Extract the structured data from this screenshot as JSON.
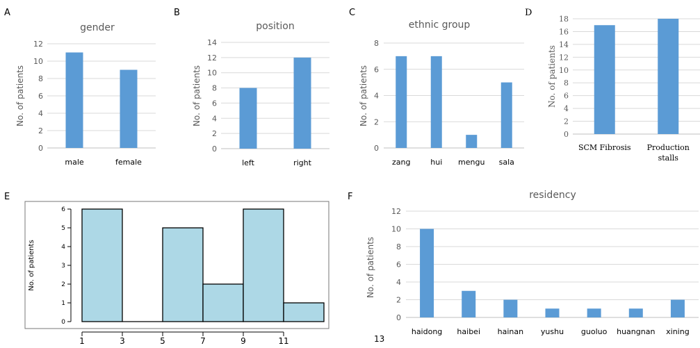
{
  "footnote": "13",
  "colors": {
    "bar": "#5b9bd5",
    "hist_fill": "#add8e6",
    "hist_stroke": "#000000",
    "grid": "#d9d9d9",
    "text": "#595959"
  },
  "chart_data": [
    {
      "id": "A",
      "panel_label": "A",
      "type": "bar",
      "title": "gender",
      "ylabel": "No. of patients",
      "xlabel": "",
      "categories": [
        "male",
        "female"
      ],
      "values": [
        11,
        9
      ],
      "ylim": [
        0,
        12
      ],
      "yticks": [
        0,
        2,
        4,
        6,
        8,
        10,
        12
      ],
      "grid": true
    },
    {
      "id": "B",
      "panel_label": "B",
      "type": "bar",
      "title": "position",
      "ylabel": "No. of patients",
      "xlabel": "",
      "categories": [
        "left",
        "right"
      ],
      "values": [
        8,
        12
      ],
      "ylim": [
        0,
        14
      ],
      "yticks": [
        0,
        2,
        4,
        6,
        8,
        10,
        12,
        14
      ],
      "grid": true
    },
    {
      "id": "C",
      "panel_label": "C",
      "type": "bar",
      "title": "ethnic group",
      "ylabel": "No. of patients",
      "xlabel": "",
      "categories": [
        "zang",
        "hui",
        "mengu",
        "sala"
      ],
      "values": [
        7,
        7,
        1,
        5
      ],
      "ylim": [
        0,
        8
      ],
      "yticks": [
        0,
        2,
        4,
        6,
        8
      ],
      "grid": true
    },
    {
      "id": "D",
      "panel_label": "D",
      "type": "bar",
      "title": "",
      "ylabel": "No. of patients",
      "xlabel": "",
      "categories": [
        "SCM Fibrosis",
        "Production stalls"
      ],
      "category_lines": [
        [
          "SCM Fibrosis"
        ],
        [
          "Production",
          "stalls"
        ]
      ],
      "values": [
        17,
        18
      ],
      "ylim": [
        0,
        18
      ],
      "yticks": [
        0,
        2,
        4,
        6,
        8,
        10,
        12,
        14,
        16,
        18
      ],
      "grid": true
    },
    {
      "id": "E",
      "panel_label": "E",
      "type": "bar",
      "subtype": "histogram",
      "title": "",
      "ylabel": "No. of patients",
      "xlabel": "",
      "bins": [
        [
          1,
          3
        ],
        [
          3,
          5
        ],
        [
          5,
          7
        ],
        [
          7,
          9
        ],
        [
          9,
          11
        ],
        [
          11,
          13
        ]
      ],
      "values": [
        6,
        0,
        5,
        2,
        6,
        1
      ],
      "xlim": [
        1,
        13
      ],
      "xticks": [
        1,
        3,
        5,
        7,
        9,
        11
      ],
      "ylim": [
        0,
        6
      ],
      "yticks": [
        0,
        1,
        2,
        3,
        4,
        5,
        6
      ],
      "grid": false
    },
    {
      "id": "F",
      "panel_label": "F",
      "type": "bar",
      "title": "residency",
      "ylabel": "No. of patients",
      "xlabel": "",
      "categories": [
        "haidong",
        "haibei",
        "hainan",
        "yushu",
        "guoluo",
        "huangnan",
        "xining"
      ],
      "values": [
        10,
        3,
        2,
        1,
        1,
        1,
        2
      ],
      "ylim": [
        0,
        12
      ],
      "yticks": [
        0,
        2,
        4,
        6,
        8,
        10,
        12
      ],
      "grid": true
    }
  ]
}
